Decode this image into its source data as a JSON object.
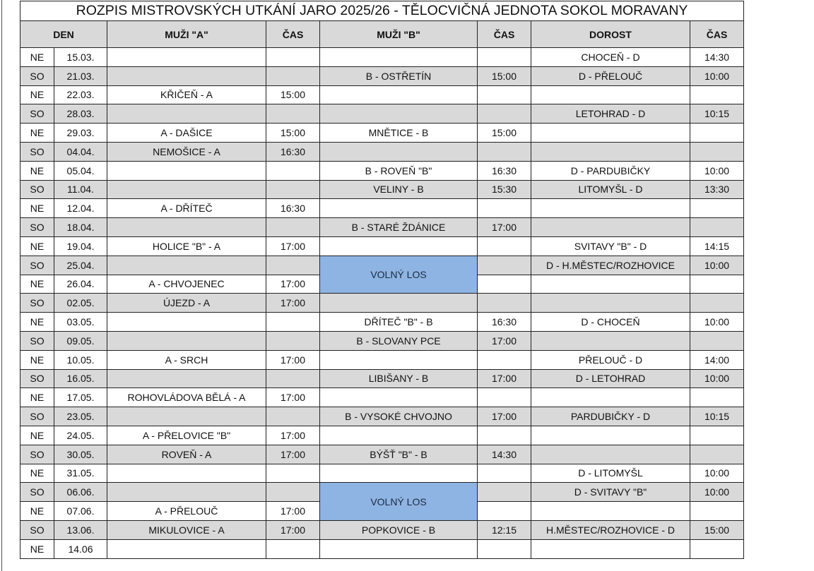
{
  "title": "ROZPIS MISTROVSKÝCH UTKÁNÍ JARO 2025/26 - TĚLOCVIČNÁ JEDNOTA SOKOL MORAVANY",
  "headers": {
    "day": "DEN",
    "men_a": "MUŽI \"A\"",
    "time_a": "ČAS",
    "men_b": "MUŽI \"B\"",
    "time_b": "ČAS",
    "youth": "DOROST",
    "time_d": "ČAS"
  },
  "colors": {
    "weekday_row_gray": "#d9d9d9",
    "free_draw_blue": "#8eb4e3"
  },
  "rows": [
    {
      "day": "NE",
      "date": "15.03.",
      "a": "",
      "at": "",
      "b": "",
      "bt": "",
      "d": "CHOCEŇ - D",
      "dt": "14:30"
    },
    {
      "day": "SO",
      "date": "21.03.",
      "a": "",
      "at": "",
      "b": "B - OSTŘETÍN",
      "bt": "15:00",
      "d": "D - PŘELOUČ",
      "dt": "10:00"
    },
    {
      "day": "NE",
      "date": "22.03.",
      "a": "KŘIČEŇ - A",
      "at": "15:00",
      "b": "",
      "bt": "",
      "d": "",
      "dt": ""
    },
    {
      "day": "SO",
      "date": "28.03.",
      "a": "",
      "at": "",
      "b": "",
      "bt": "",
      "d": "LETOHRAD - D",
      "dt": "10:15"
    },
    {
      "day": "NE",
      "date": "29.03.",
      "a": "A - DAŠICE",
      "at": "15:00",
      "b": "MNĚTICE - B",
      "bt": "15:00",
      "d": "",
      "dt": ""
    },
    {
      "day": "SO",
      "date": "04.04.",
      "a": "NEMOŠICE - A",
      "at": "16:30",
      "b": "",
      "bt": "",
      "d": "",
      "dt": ""
    },
    {
      "day": "NE",
      "date": "05.04.",
      "a": "",
      "at": "",
      "b": "B - ROVEŇ \"B\"",
      "bt": "16:30",
      "d": "D - PARDUBIČKY",
      "dt": "10:00"
    },
    {
      "day": "SO",
      "date": "11.04.",
      "a": "",
      "at": "",
      "b": "VELINY - B",
      "bt": "15:30",
      "d": "LITOMYŠL - D",
      "dt": "13:30"
    },
    {
      "day": "NE",
      "date": "12.04.",
      "a": "A - DŘÍTEČ",
      "at": "16:30",
      "b": "",
      "bt": "",
      "d": "",
      "dt": ""
    },
    {
      "day": "SO",
      "date": "18.04.",
      "a": "",
      "at": "",
      "b": "B - STARÉ ŽDÁNICE",
      "bt": "17:00",
      "d": "",
      "dt": ""
    },
    {
      "day": "NE",
      "date": "19.04.",
      "a": "HOLICE \"B\" - A",
      "at": "17:00",
      "b": "",
      "bt": "",
      "d": "SVITAVY \"B\" - D",
      "dt": "14:15"
    },
    {
      "day": "SO",
      "date": "25.04.",
      "a": "",
      "at": "",
      "b": "VOLNÝ LOS",
      "b_free": true,
      "bt": "",
      "d": "D - H.MĚSTEC/ROZHOVICE",
      "dt": "10:00"
    },
    {
      "day": "NE",
      "date": "26.04.",
      "a": "A - CHVOJENEC",
      "at": "17:00",
      "b": null,
      "bt": "",
      "d": "",
      "dt": ""
    },
    {
      "day": "SO",
      "date": "02.05.",
      "a": "ÚJEZD - A",
      "at": "17:00",
      "b": "",
      "bt": "",
      "d": "",
      "dt": ""
    },
    {
      "day": "NE",
      "date": "03.05.",
      "a": "",
      "at": "",
      "b": "DŘÍTEČ \"B\" - B",
      "bt": "16:30",
      "d": "D - CHOCEŇ",
      "dt": "10:00"
    },
    {
      "day": "SO",
      "date": "09.05.",
      "a": "",
      "at": "",
      "b": "B - SLOVANY PCE",
      "bt": "17:00",
      "d": "",
      "dt": ""
    },
    {
      "day": "NE",
      "date": "10.05.",
      "a": "A - SRCH",
      "at": "17:00",
      "b": "",
      "bt": "",
      "d": "PŘELOUČ - D",
      "dt": "14:00"
    },
    {
      "day": "SO",
      "date": "16.05.",
      "a": "",
      "at": "",
      "b": "LIBIŠANY - B",
      "bt": "17:00",
      "d": "D - LETOHRAD",
      "dt": "10:00"
    },
    {
      "day": "NE",
      "date": "17.05.",
      "a": "ROHOVLÁDOVA BĚLÁ - A",
      "at": "17:00",
      "b": "",
      "bt": "",
      "d": "",
      "dt": ""
    },
    {
      "day": "SO",
      "date": "23.05.",
      "a": "",
      "at": "",
      "b": "B - VYSOKÉ CHVOJNO",
      "bt": "17:00",
      "d": "PARDUBIČKY - D",
      "dt": "10:15"
    },
    {
      "day": "NE",
      "date": "24.05.",
      "a": "A - PŘELOVICE \"B\"",
      "at": "17:00",
      "b": "",
      "bt": "",
      "d": "",
      "dt": ""
    },
    {
      "day": "SO",
      "date": "30.05.",
      "a": "ROVEŇ - A",
      "at": "17:00",
      "b": "BÝŠŤ \"B\" - B",
      "bt": "14:30",
      "d": "",
      "dt": ""
    },
    {
      "day": "NE",
      "date": "31.05.",
      "a": "",
      "at": "",
      "b": "",
      "bt": "",
      "d": "D - LITOMYŠL",
      "dt": "10:00"
    },
    {
      "day": "SO",
      "date": "06.06.",
      "a": "",
      "at": "",
      "b": "VOLNÝ LOS",
      "b_free": true,
      "bt": "",
      "d": "D - SVITAVY \"B\"",
      "dt": "10:00"
    },
    {
      "day": "NE",
      "date": "07.06.",
      "a": "A - PŘELOUČ",
      "at": "17:00",
      "b": null,
      "bt": "",
      "d": "",
      "dt": ""
    },
    {
      "day": "SO",
      "date": "13.06.",
      "a": "MIKULOVICE - A",
      "at": "17:00",
      "b": "POPKOVICE - B",
      "bt": "12:15",
      "d": "H.MĚSTEC/ROZHOVICE - D",
      "dt": "15:00"
    },
    {
      "day": "NE",
      "date": "14.06",
      "a": "",
      "at": "",
      "b": "",
      "bt": "",
      "d": "",
      "dt": ""
    }
  ]
}
